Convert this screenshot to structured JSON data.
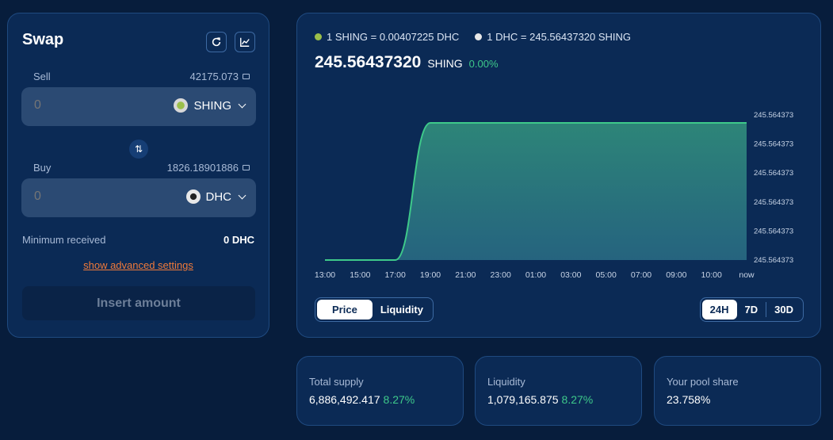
{
  "swap": {
    "title": "Swap",
    "sell_label": "Sell",
    "sell_balance": "42175.073",
    "sell_amount_placeholder": "0",
    "sell_token": "SHING",
    "buy_label": "Buy",
    "buy_balance": "1826.18901886",
    "buy_amount_placeholder": "0",
    "buy_token": "DHC",
    "switch_glyph": "⇅",
    "min_received_label": "Minimum received",
    "min_received_value": "0 DHC",
    "advanced_link": "show advanced settings",
    "submit_label": "Insert amount"
  },
  "rates": {
    "rate1": "1 SHING = 0.00407225 DHC",
    "rate2": "1 DHC = 245.56437320 SHING"
  },
  "price": {
    "value": "245.56437320",
    "unit": "SHING",
    "change": "0.00%"
  },
  "tabs": {
    "price_label": "Price",
    "liquidity_label": "Liquidity",
    "active": "Price"
  },
  "ranges": {
    "r24h": "24H",
    "r7d": "7D",
    "r30d": "30D",
    "active": "24H"
  },
  "stats": {
    "total_supply_label": "Total supply",
    "total_supply_value": "6,886,492.417",
    "total_supply_change": "8.27%",
    "liquidity_label": "Liquidity",
    "liquidity_value": "1,079,165.875",
    "liquidity_change": "8.27%",
    "pool_share_label": "Your pool share",
    "pool_share_value": "23.758%"
  },
  "colors": {
    "accent_green": "#3ec98a",
    "link_orange": "#f07a3a",
    "shing_token": "#9bbf4a",
    "dhc_token": "#e8e8e8"
  },
  "icons": {
    "refresh": "refresh-icon",
    "chart": "chart-icon",
    "wallet": "wallet-icon",
    "switch": "swap-arrows-icon"
  },
  "chart_data": {
    "type": "area",
    "x": [
      "13:00",
      "15:00",
      "17:00",
      "19:00",
      "21:00",
      "23:00",
      "01:00",
      "03:00",
      "05:00",
      "07:00",
      "09:00",
      "10:00",
      "now"
    ],
    "y_tick_labels": [
      "245.564373",
      "245.564373",
      "245.564373",
      "245.564373",
      "245.564373",
      "245.564373"
    ],
    "series": [
      {
        "values": [
          0.0,
          0.0,
          0.0,
          1.0,
          1.0,
          1.0,
          1.0,
          1.0,
          1.0,
          1.0,
          1.0,
          1.0,
          1.0
        ]
      }
    ],
    "ylim": [
      0,
      1
    ],
    "grid": false,
    "color": "#3ec98a"
  }
}
